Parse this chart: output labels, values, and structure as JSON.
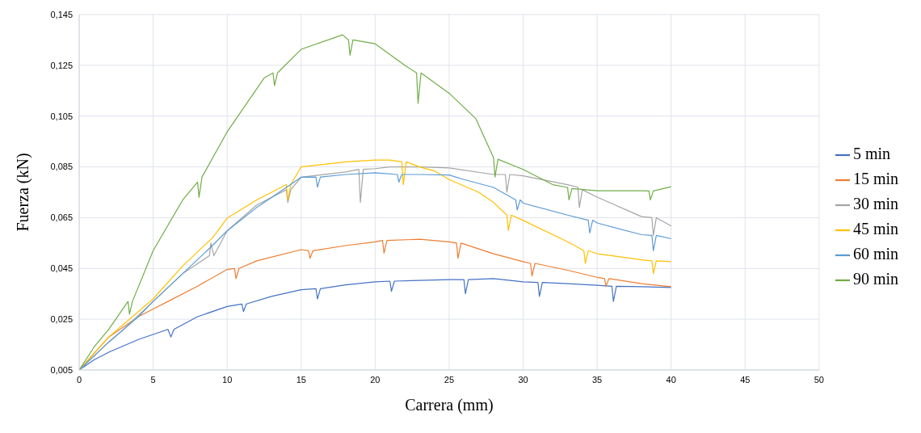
{
  "chart_data": {
    "type": "line",
    "xlabel": "Carrera (mm)",
    "ylabel": "Fuerza  (kN)",
    "xlim": [
      0,
      50
    ],
    "xticks": [
      0,
      5,
      10,
      15,
      20,
      25,
      30,
      35,
      40,
      45,
      50
    ],
    "ylim": [
      0.005,
      0.145
    ],
    "yticks": [
      {
        "value": 0.005,
        "label": "0,005"
      },
      {
        "value": 0.025,
        "label": "0,025"
      },
      {
        "value": 0.045,
        "label": "0,045"
      },
      {
        "value": 0.065,
        "label": "0,065"
      },
      {
        "value": 0.085,
        "label": "0,085"
      },
      {
        "value": 0.105,
        "label": "0,105"
      },
      {
        "value": 0.125,
        "label": "0,125"
      },
      {
        "value": 0.145,
        "label": "0,145"
      }
    ],
    "grid": true,
    "legend": "right",
    "marker": "none",
    "line_style": "solid",
    "series": [
      {
        "name": "5 min",
        "color": "#4472c4",
        "x": [
          0,
          1,
          2,
          4,
          6,
          6.2,
          6.4,
          8,
          10,
          11,
          11.1,
          11.3,
          13,
          15,
          16,
          16.1,
          16.3,
          18,
          20,
          21,
          21.1,
          21.3,
          23,
          25,
          26,
          26.1,
          26.3,
          28,
          30,
          31,
          31.1,
          31.3,
          33,
          35,
          36,
          36.1,
          36.3,
          38,
          40
        ],
        "values": [
          0.005,
          0.009,
          0.012,
          0.017,
          0.021,
          0.018,
          0.021,
          0.026,
          0.03,
          0.031,
          0.028,
          0.031,
          0.034,
          0.0366,
          0.037,
          0.033,
          0.037,
          0.0385,
          0.0397,
          0.04,
          0.036,
          0.04,
          0.0403,
          0.0406,
          0.0406,
          0.035,
          0.0406,
          0.041,
          0.0397,
          0.0395,
          0.034,
          0.0395,
          0.039,
          0.0384,
          0.038,
          0.032,
          0.038,
          0.0378,
          0.0375
        ]
      },
      {
        "name": "15 min",
        "color": "#ed7d31",
        "x": [
          0,
          2,
          4,
          5,
          6,
          8,
          10,
          10.5,
          10.6,
          10.8,
          12,
          15,
          15.5,
          15.6,
          15.8,
          18,
          20,
          20.5,
          20.6,
          20.8,
          23,
          25,
          25.5,
          25.6,
          25.8,
          28,
          30,
          30.5,
          30.6,
          30.8,
          33,
          35,
          35.5,
          35.6,
          35.8,
          38,
          40
        ],
        "values": [
          0.005,
          0.018,
          0.026,
          0.029,
          0.032,
          0.038,
          0.0446,
          0.045,
          0.041,
          0.045,
          0.048,
          0.0524,
          0.052,
          0.049,
          0.052,
          0.054,
          0.0555,
          0.056,
          0.051,
          0.056,
          0.0565,
          0.0555,
          0.055,
          0.049,
          0.055,
          0.0508,
          0.0477,
          0.047,
          0.042,
          0.047,
          0.0443,
          0.0415,
          0.041,
          0.038,
          0.041,
          0.039,
          0.0378
        ]
      },
      {
        "name": "30 min",
        "color": "#a5a5a5",
        "x": [
          0,
          2,
          3,
          5,
          7,
          8.8,
          8.9,
          9.1,
          10,
          12,
          14,
          14.1,
          14.3,
          15,
          18,
          18.9,
          19,
          19.2,
          20,
          21,
          23,
          25,
          28,
          28.8,
          28.9,
          29.1,
          30,
          33,
          33.7,
          33.8,
          34,
          35,
          38,
          38.7,
          38.8,
          39,
          40
        ],
        "values": [
          0.005,
          0.016,
          0.021,
          0.032,
          0.043,
          0.05,
          0.055,
          0.05,
          0.0598,
          0.07,
          0.076,
          0.071,
          0.076,
          0.0809,
          0.083,
          0.084,
          0.071,
          0.084,
          0.0843,
          0.085,
          0.085,
          0.0846,
          0.082,
          0.082,
          0.075,
          0.082,
          0.0815,
          0.078,
          0.077,
          0.069,
          0.076,
          0.0731,
          0.0654,
          0.065,
          0.058,
          0.065,
          0.0617
        ]
      },
      {
        "name": "45 min",
        "color": "#ffc000",
        "x": [
          0,
          2,
          4,
          5,
          7,
          9,
          10,
          12,
          14,
          14.1,
          14.3,
          15,
          18,
          20,
          21,
          21.8,
          21.9,
          22.1,
          23,
          24,
          25,
          27,
          28,
          28.9,
          29,
          29.2,
          30,
          33,
          34.1,
          34.2,
          34.4,
          35,
          38,
          38.7,
          38.8,
          39,
          40
        ],
        "values": [
          0.005,
          0.018,
          0.028,
          0.033,
          0.046,
          0.057,
          0.0648,
          0.072,
          0.078,
          0.072,
          0.078,
          0.085,
          0.087,
          0.0877,
          0.0877,
          0.087,
          0.078,
          0.087,
          0.085,
          0.0834,
          0.08,
          0.075,
          0.071,
          0.066,
          0.06,
          0.066,
          0.0639,
          0.0555,
          0.052,
          0.047,
          0.052,
          0.0508,
          0.0484,
          0.048,
          0.043,
          0.048,
          0.0477
        ]
      },
      {
        "name": "60 min",
        "color": "#5b9bd5",
        "x": [
          0,
          2,
          4,
          5,
          7,
          9,
          10,
          12,
          15,
          16,
          16.1,
          16.3,
          18,
          20,
          21.5,
          21.6,
          21.8,
          23,
          25,
          26,
          28,
          29.5,
          29.6,
          29.8,
          30,
          33,
          34.4,
          34.5,
          34.7,
          35,
          38,
          38.7,
          38.8,
          39,
          40
        ],
        "values": [
          0.005,
          0.016,
          0.026,
          0.032,
          0.043,
          0.054,
          0.0598,
          0.069,
          0.0809,
          0.081,
          0.077,
          0.081,
          0.082,
          0.0827,
          0.082,
          0.079,
          0.082,
          0.082,
          0.0818,
          0.08,
          0.0769,
          0.072,
          0.068,
          0.072,
          0.0707,
          0.066,
          0.064,
          0.059,
          0.064,
          0.0629,
          0.0583,
          0.058,
          0.052,
          0.058,
          0.0567
        ]
      },
      {
        "name": "90 min",
        "color": "#70ad47",
        "x": [
          0,
          1,
          2,
          3.3,
          3.4,
          3.6,
          5,
          7,
          8,
          8.1,
          8.3,
          10,
          12.5,
          13.1,
          13.2,
          13.4,
          15,
          17.8,
          18.2,
          18.3,
          18.5,
          20,
          22,
          22.8,
          22.9,
          23.1,
          25,
          26.8,
          28,
          28.1,
          28.3,
          30,
          32,
          33,
          33.1,
          33.3,
          35,
          38,
          38.5,
          38.6,
          38.8,
          40
        ],
        "values": [
          0.005,
          0.014,
          0.021,
          0.032,
          0.027,
          0.032,
          0.052,
          0.072,
          0.079,
          0.073,
          0.081,
          0.0988,
          0.12,
          0.122,
          0.117,
          0.122,
          0.1313,
          0.137,
          0.135,
          0.129,
          0.135,
          0.1335,
          0.125,
          0.122,
          0.11,
          0.122,
          0.114,
          0.104,
          0.0886,
          0.081,
          0.088,
          0.084,
          0.078,
          0.0769,
          0.072,
          0.0765,
          0.0756,
          0.0756,
          0.0755,
          0.072,
          0.0755,
          0.0772
        ]
      }
    ]
  }
}
